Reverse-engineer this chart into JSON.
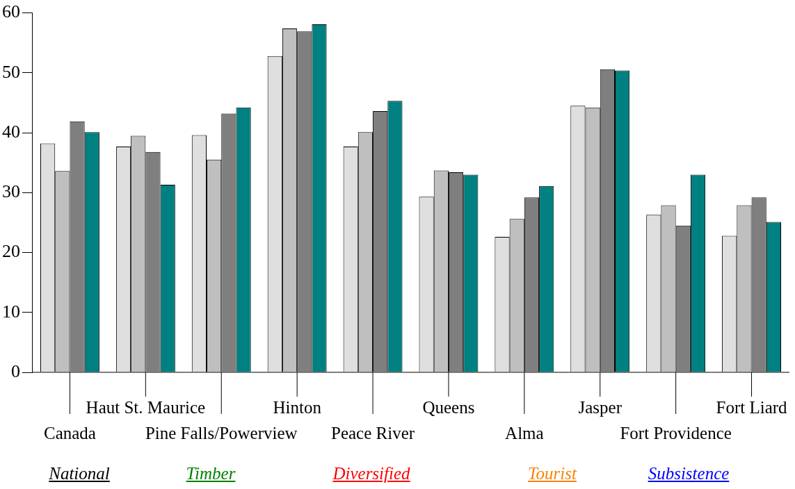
{
  "chart_data": {
    "type": "bar",
    "categories": [
      "Canada",
      "Haut St. Maurice",
      "Pine Falls/Powerview",
      "Hinton",
      "Peace River",
      "Queens",
      "Alma",
      "Jasper",
      "Fort Providence",
      "Fort Liard"
    ],
    "series": [
      {
        "color": "#dfdfdf",
        "values": [
          38.2,
          37.7,
          39.6,
          52.8,
          37.7,
          29.3,
          22.6,
          44.5,
          26.3,
          22.8
        ]
      },
      {
        "color": "#bfbfbf",
        "values": [
          33.6,
          39.5,
          35.5,
          57.4,
          40.1,
          33.7,
          25.6,
          44.2,
          27.9,
          27.9
        ]
      },
      {
        "color": "#7f7f7f",
        "values": [
          41.9,
          36.8,
          43.2,
          56.9,
          43.6,
          33.4,
          29.2,
          50.6,
          24.5,
          29.2
        ]
      },
      {
        "color": "#008080",
        "values": [
          40.1,
          31.3,
          44.2,
          58.1,
          45.3,
          33.0,
          31.1,
          50.4,
          33.0,
          25.1
        ]
      }
    ],
    "ylim": [
      0,
      60
    ],
    "yticks": [
      0,
      10,
      20,
      30,
      40,
      50,
      60
    ],
    "grid": false,
    "legend": false,
    "annotations": [
      "National",
      "Timber",
      "Diversified",
      "Tourist",
      "Subsistence"
    ]
  }
}
